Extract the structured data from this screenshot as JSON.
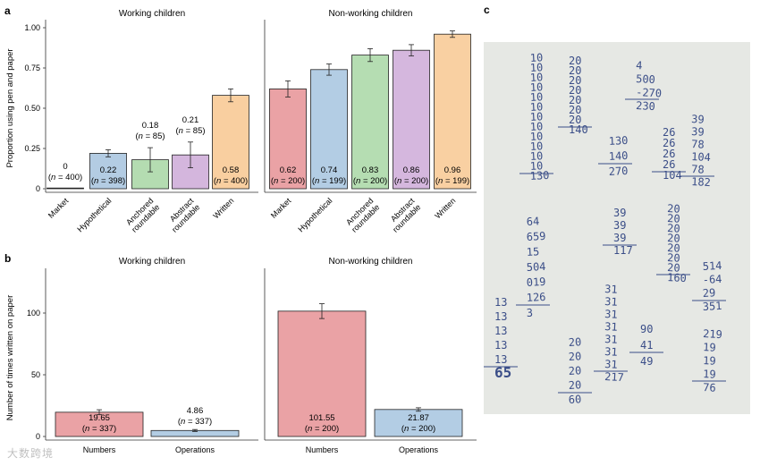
{
  "chart_data": [
    {
      "panel": "a",
      "type": "bar",
      "ylabel": "Proportion using pen and paper",
      "ylim": [
        0,
        1.05
      ],
      "yticks": [
        "0",
        "0.25",
        "0.50",
        "0.75",
        "1.00"
      ],
      "ytick_values": [
        0,
        0.25,
        0.5,
        0.75,
        1.0
      ],
      "groups": [
        {
          "title": "Working children",
          "bars": [
            {
              "category": "Market",
              "value": 0,
              "err": 0,
              "label": "0",
              "n": "(n = 400)",
              "label_position": "above",
              "color": "#e8a0a3"
            },
            {
              "category": "Hypothetical",
              "value": 0.22,
              "err": 0.022,
              "label": "0.22",
              "n": "(n = 398)",
              "label_position": "inside",
              "color": "#b3cce3"
            },
            {
              "category": "Anchored roundable",
              "value": 0.18,
              "err": 0.075,
              "label": "0.18",
              "n": "(n = 85)",
              "label_position": "above",
              "color": "#b4dcb1"
            },
            {
              "category": "Abstract roundable",
              "value": 0.21,
              "err": 0.08,
              "label": "0.21",
              "n": "(n = 85)",
              "label_position": "above",
              "color": "#d4b6dd"
            },
            {
              "category": "Written",
              "value": 0.58,
              "err": 0.04,
              "label": "0.58",
              "n": "(n = 400)",
              "label_position": "inside",
              "color": "#f9cfa0"
            }
          ]
        },
        {
          "title": "Non-working children",
          "bars": [
            {
              "category": "Market",
              "value": 0.62,
              "err": 0.05,
              "label": "0.62",
              "n": "(n = 200)",
              "label_position": "inside",
              "color": "#eaa2a5"
            },
            {
              "category": "Hypothetical",
              "value": 0.74,
              "err": 0.035,
              "label": "0.74",
              "n": "(n = 199)",
              "label_position": "inside",
              "color": "#b3cde4"
            },
            {
              "category": "Anchored roundable",
              "value": 0.83,
              "err": 0.04,
              "label": "0.83",
              "n": "(n = 200)",
              "label_position": "inside",
              "color": "#b5ddb2"
            },
            {
              "category": "Abstract roundable",
              "value": 0.86,
              "err": 0.035,
              "label": "0.86",
              "n": "(n = 200)",
              "label_position": "inside",
              "color": "#d5b7de"
            },
            {
              "category": "Written",
              "value": 0.96,
              "err": 0.02,
              "label": "0.96",
              "n": "(n = 199)",
              "label_position": "inside",
              "color": "#f9d0a2"
            }
          ]
        }
      ]
    },
    {
      "panel": "b",
      "type": "bar",
      "ylabel": "Number of times written on paper",
      "ylim": [
        0,
        130
      ],
      "yticks": [
        "0",
        "50",
        "100"
      ],
      "ytick_values": [
        0,
        50,
        100
      ],
      "groups": [
        {
          "title": "Working children",
          "bars": [
            {
              "category": "Numbers",
              "value": 19.65,
              "err": 2.0,
              "label": "19.65",
              "n": "(n = 337)",
              "label_position": "inside",
              "color": "#eaa2a5"
            },
            {
              "category": "Operations",
              "value": 4.86,
              "err": 0.8,
              "label": "4.86",
              "n": "(n = 337)",
              "label_position": "above",
              "color": "#b3cde4"
            }
          ]
        },
        {
          "title": "Non-working children",
          "bars": [
            {
              "category": "Numbers",
              "value": 101.55,
              "err": 6.0,
              "label": "101.55",
              "n": "(n = 200)",
              "label_position": "inside",
              "color": "#eaa2a5"
            },
            {
              "category": "Operations",
              "value": 21.87,
              "err": 1.4,
              "label": "21.87",
              "n": "(n = 200)",
              "label_position": "inside",
              "color": "#b3cde4"
            }
          ]
        }
      ]
    }
  ],
  "panel_labels": {
    "a": "a",
    "b": "b",
    "c": "c"
  },
  "photo": {
    "description_label": "c",
    "columns": [
      [
        "10",
        "10",
        "10",
        "10",
        "10",
        "10",
        "10",
        "10",
        "10",
        "10",
        "10",
        "10",
        "130"
      ],
      [
        "20",
        "20",
        "20",
        "20",
        "20",
        "20",
        "20",
        "140"
      ],
      [
        "4",
        "500",
        "-270",
        "230"
      ],
      [
        "130",
        "140",
        "270"
      ],
      [
        "26",
        "26",
        "26",
        "26",
        "104"
      ],
      [
        "39",
        "39",
        "78",
        "104",
        "78",
        "182"
      ],
      [
        "64",
        "659",
        "15",
        "504",
        "019",
        "126",
        "3"
      ],
      [
        "39",
        "39",
        "39",
        "117"
      ],
      [
        "20",
        "20",
        "20",
        "20",
        "20",
        "20",
        "20",
        "160"
      ],
      [
        "514",
        "-64",
        "29",
        "351"
      ],
      [
        "13",
        "13",
        "13",
        "13",
        "13",
        "65"
      ],
      [
        "31",
        "31",
        "31",
        "31",
        "31",
        "31",
        "31",
        "217"
      ],
      [
        "20",
        "20",
        "20",
        "20",
        "60"
      ],
      [
        "90",
        "41",
        "49"
      ],
      [
        "219",
        "19",
        "19",
        "19",
        "76"
      ]
    ]
  },
  "watermark": "大数跨境"
}
